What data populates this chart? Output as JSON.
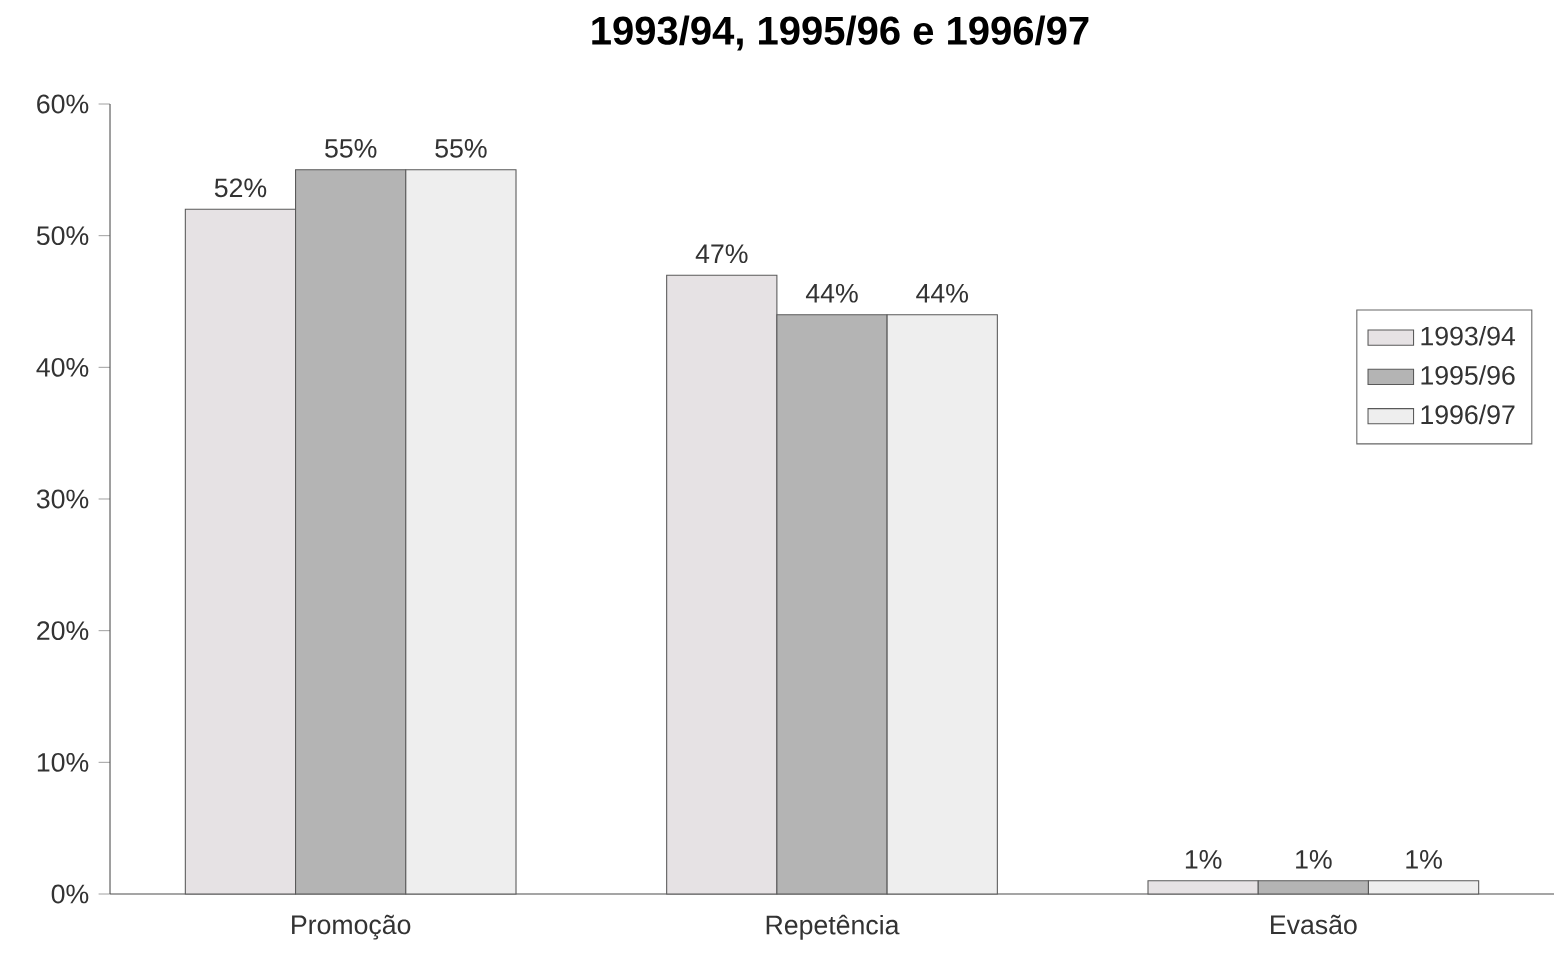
{
  "chart_data": {
    "type": "bar",
    "title": "1993/94, 1995/96 e 1996/97",
    "categories": [
      "Promoção",
      "Repetência",
      "Evasão"
    ],
    "series": [
      {
        "name": "1993/94",
        "color": "#e6e2e4",
        "values": [
          52,
          47,
          1
        ],
        "value_labels": [
          "52%",
          "47%",
          "1%"
        ]
      },
      {
        "name": "1995/96",
        "color": "#b4b4b4",
        "values": [
          55,
          44,
          1
        ],
        "value_labels": [
          "55%",
          "44%",
          "1%"
        ]
      },
      {
        "name": "1996/97",
        "color": "#eeeeee",
        "values": [
          55,
          44,
          1
        ],
        "value_labels": [
          "55%",
          "44%",
          "1%"
        ]
      }
    ],
    "ylim": [
      0,
      60
    ],
    "yticks": [
      {
        "value": 0,
        "label": "0%"
      },
      {
        "value": 10,
        "label": "10%"
      },
      {
        "value": 20,
        "label": "20%"
      },
      {
        "value": 30,
        "label": "30%"
      },
      {
        "value": 40,
        "label": "40%"
      },
      {
        "value": 50,
        "label": "50%"
      },
      {
        "value": 60,
        "label": "60%"
      }
    ],
    "grid": false,
    "legend": "right"
  }
}
